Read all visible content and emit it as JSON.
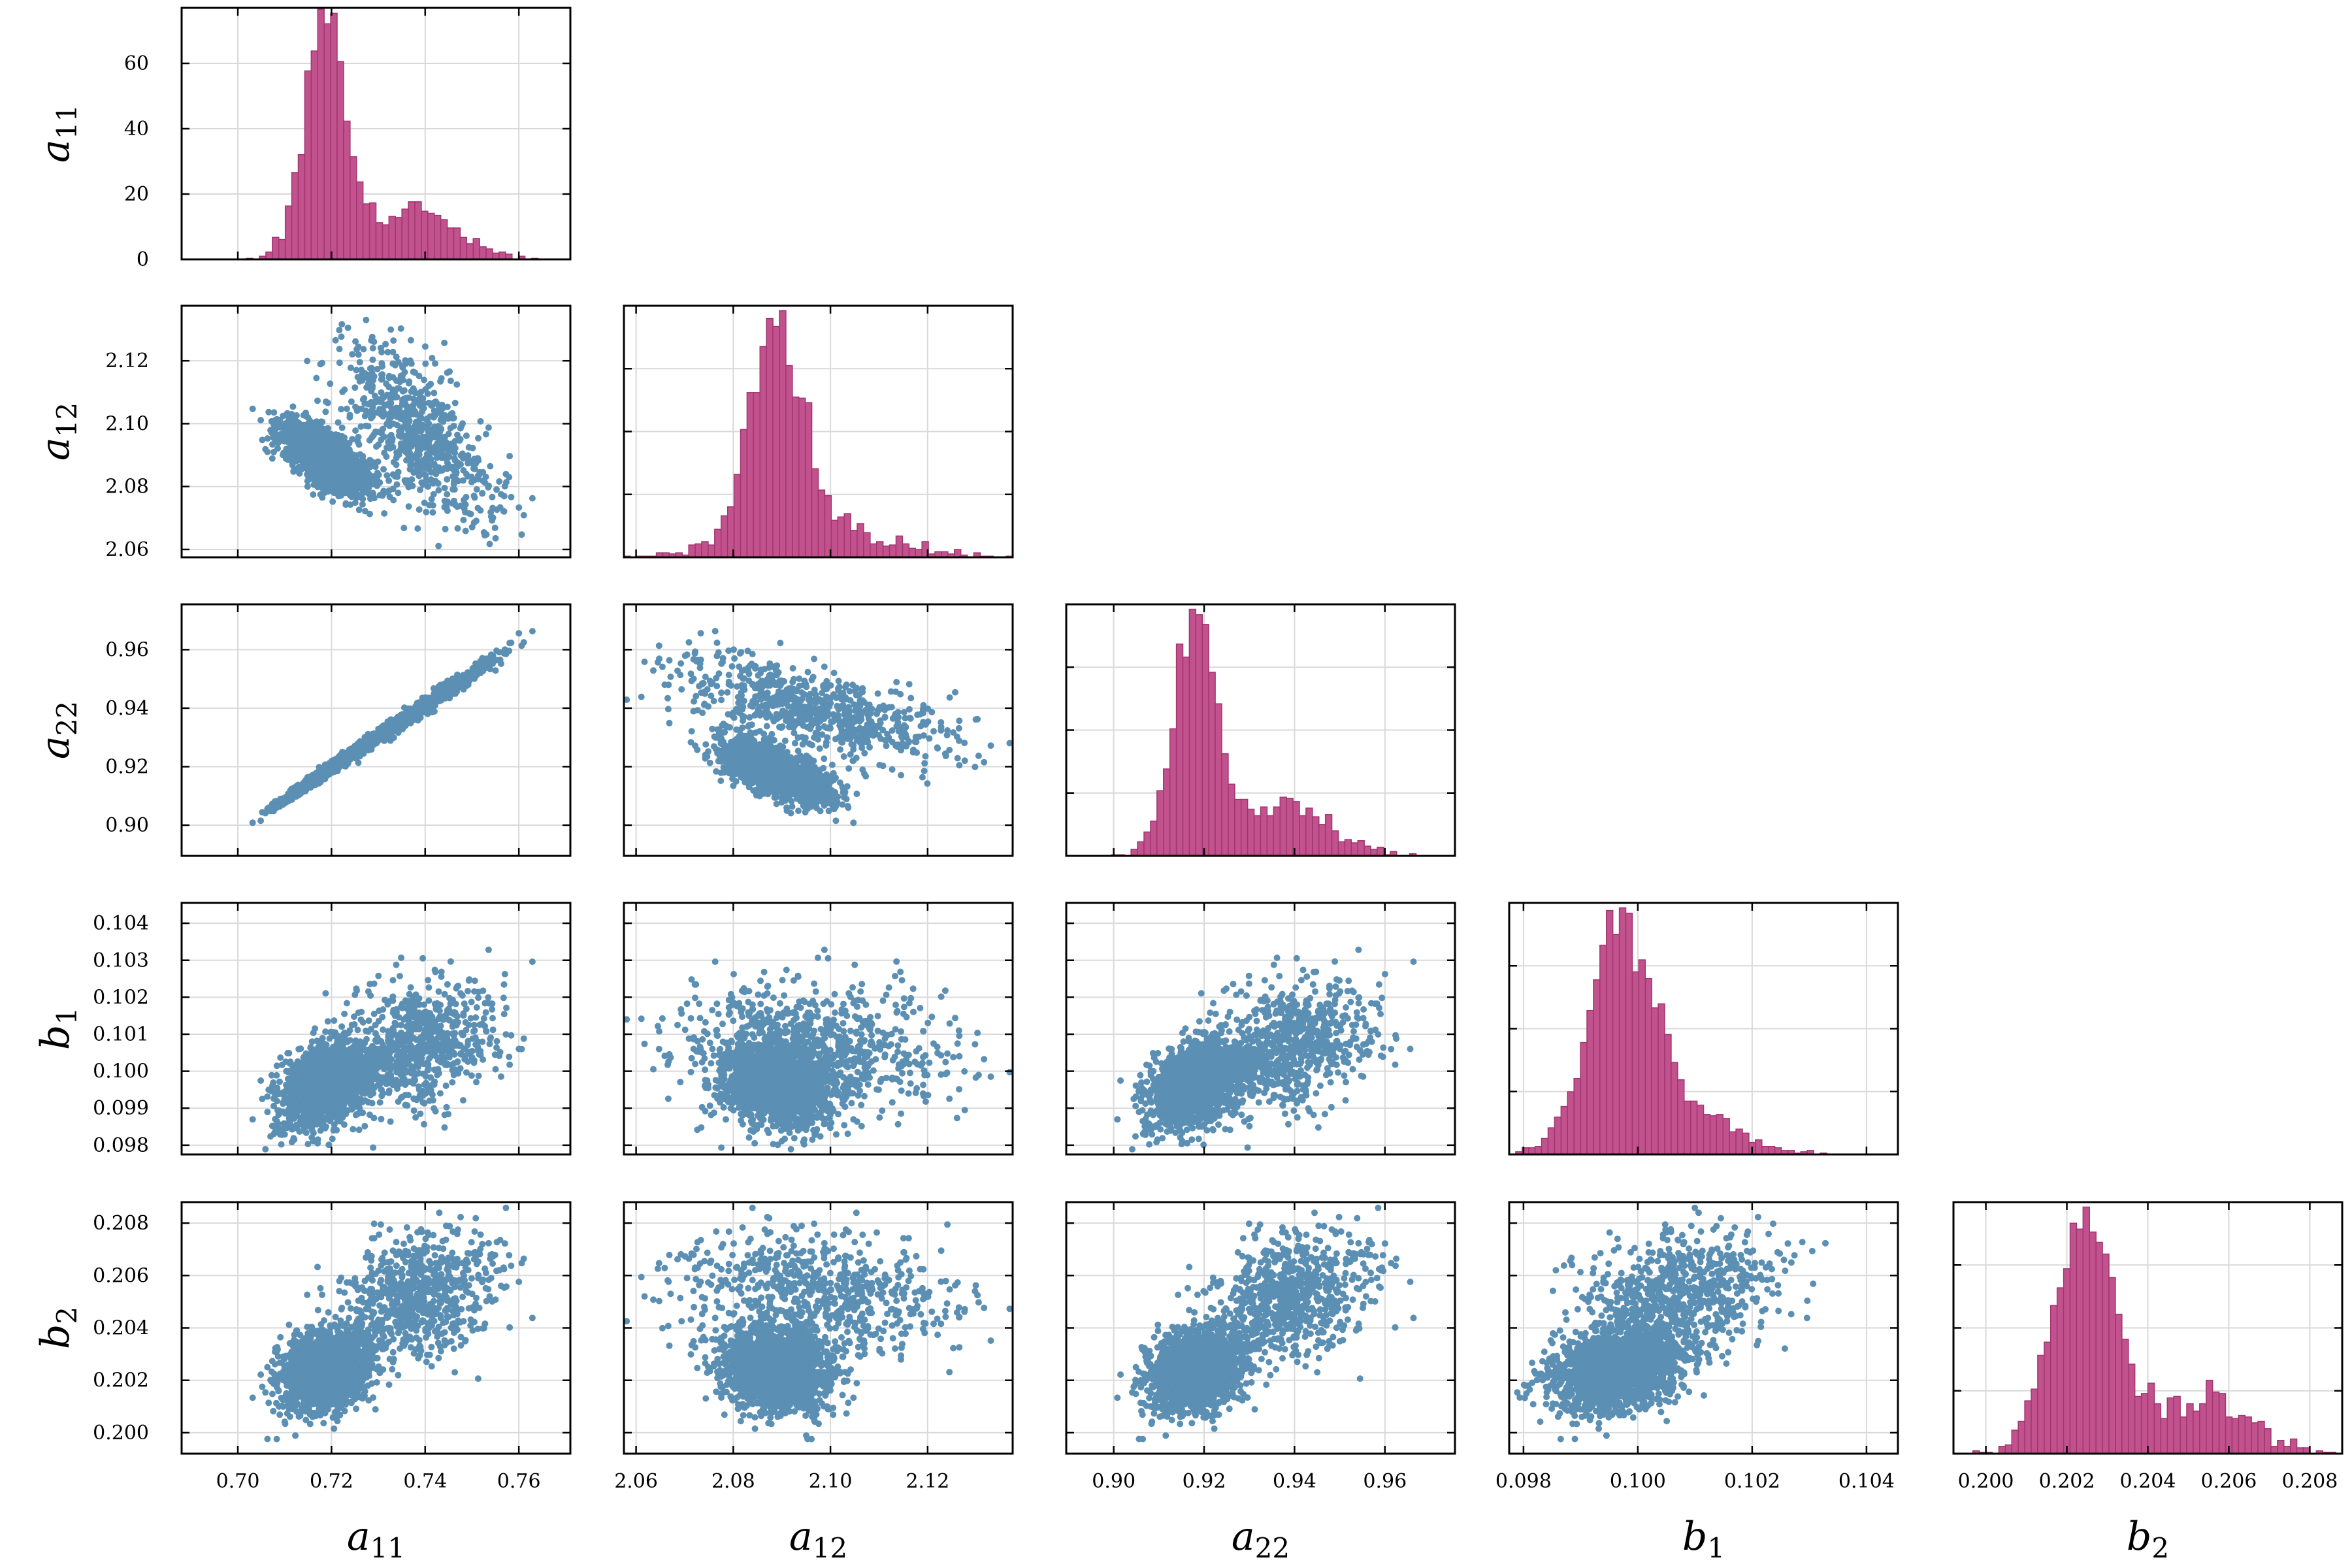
{
  "chart_data": {
    "type": "scatter-matrix",
    "parameters": [
      {
        "symbol": "a",
        "subscript": "11",
        "range": [
          0.688,
          0.771
        ],
        "ticks": [
          "0.70",
          "0.72",
          "0.74",
          "0.76"
        ],
        "tick_values": [
          0.7,
          0.72,
          0.74,
          0.76
        ]
      },
      {
        "symbol": "a",
        "subscript": "12",
        "range": [
          2.0575,
          2.1375
        ],
        "ticks": [
          "2.06",
          "2.08",
          "2.10",
          "2.12"
        ],
        "tick_values": [
          2.06,
          2.08,
          2.1,
          2.12
        ]
      },
      {
        "symbol": "a",
        "subscript": "22",
        "range": [
          0.8895,
          0.9755
        ],
        "ticks": [
          "0.90",
          "0.92",
          "0.94",
          "0.96"
        ],
        "tick_values": [
          0.9,
          0.92,
          0.94,
          0.96
        ]
      },
      {
        "symbol": "b",
        "subscript": "1",
        "range": [
          0.09775,
          0.10455
        ],
        "ticks": [
          "0.098",
          "0.099",
          "0.100",
          "0.101",
          "0.102",
          "0.103",
          "0.104"
        ],
        "tick_values": [
          0.098,
          0.099,
          0.1,
          0.101,
          0.102,
          0.103,
          0.104
        ],
        "x_ticks": [
          "0.098",
          "0.100",
          "0.102",
          "0.104"
        ],
        "x_tick_values": [
          0.098,
          0.1,
          0.102,
          0.104
        ]
      },
      {
        "symbol": "b",
        "subscript": "2",
        "range": [
          0.1992,
          0.2088
        ],
        "ticks": [
          "0.200",
          "0.202",
          "0.204",
          "0.206",
          "0.208"
        ],
        "tick_values": [
          0.2,
          0.202,
          0.204,
          0.206,
          0.208
        ]
      }
    ],
    "diagonal": {
      "type": "histogram",
      "color": "#c2528d",
      "first_ylabel_ticks": [
        "0",
        "20",
        "40",
        "60"
      ],
      "first_ylabel_tick_values": [
        0,
        20,
        40,
        60
      ],
      "first_ylim": [
        0,
        77
      ]
    },
    "scatter": {
      "color": "#5b8fb3",
      "point_count": 2600,
      "components": [
        {
          "weight": 0.72,
          "mean": [
            0.7185,
            2.089,
            0.918,
            0.09965,
            0.2024
          ],
          "sd": [
            0.0045,
            0.0055,
            0.005,
            0.00055,
            0.00075
          ]
        },
        {
          "weight": 0.28,
          "mean": [
            0.7385,
            2.097,
            0.9395,
            0.1007,
            0.2052
          ],
          "sd": [
            0.008,
            0.014,
            0.0085,
            0.00085,
            0.0012
          ]
        }
      ]
    },
    "grid": true
  }
}
